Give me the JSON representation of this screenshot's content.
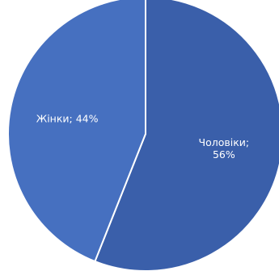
{
  "chart_data": {
    "type": "pie",
    "categories": [
      "Чоловіки",
      "Жінки"
    ],
    "values": [
      56,
      44
    ],
    "labels": [
      {
        "lines": [
          "Чоловіки;",
          "56%"
        ]
      },
      {
        "lines": [
          "Жінки; 44%"
        ]
      }
    ],
    "colors": [
      "#3a5faa",
      "#4670c0"
    ],
    "edge_color": "#ffffff",
    "start_angle_deg": 0,
    "direction": "clockwise",
    "title": "",
    "legend": "none"
  }
}
